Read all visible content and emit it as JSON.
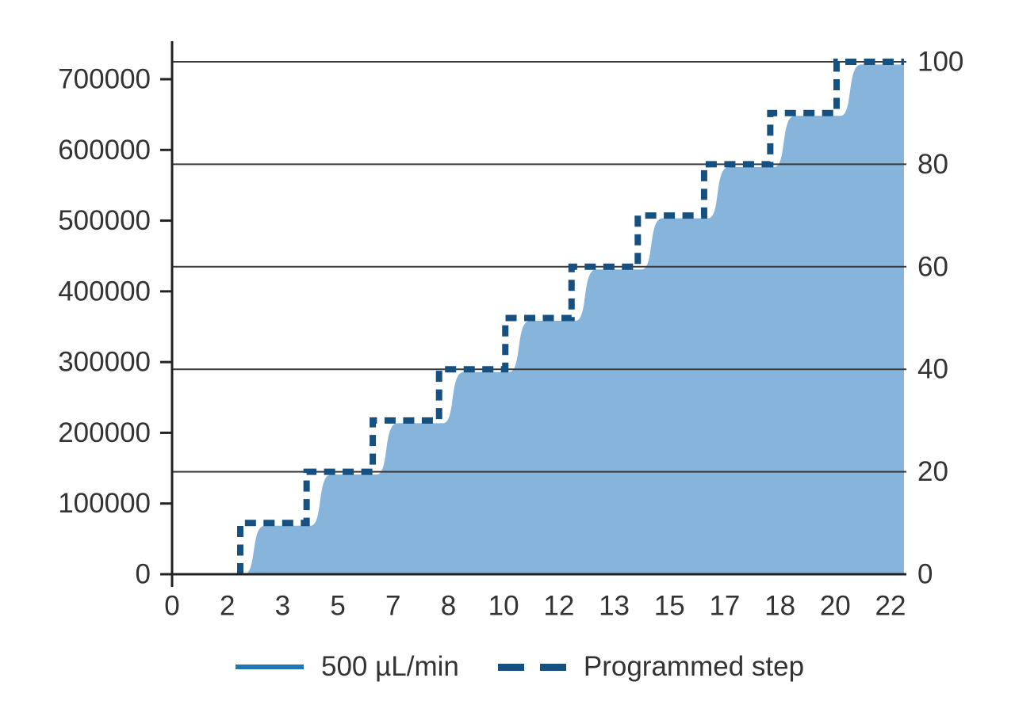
{
  "legend": {
    "items": [
      {
        "label": "500 µL/min",
        "swatch": "solid-line",
        "color": "#1C77B2"
      },
      {
        "label": "Programmed step",
        "swatch": "dashed-line",
        "color": "#155080"
      }
    ],
    "position": "bottom"
  },
  "chart_data": {
    "type": "area",
    "title": "",
    "x_axis": {
      "tick_labels": [
        "0",
        "2",
        "3",
        "5",
        "7",
        "8",
        "10",
        "12",
        "13",
        "15",
        "17",
        "18",
        "20",
        "22"
      ]
    },
    "y_axis_left": {
      "tick_labels": [
        "0",
        "100000",
        "200000",
        "300000",
        "400000",
        "500000",
        "600000",
        "700000"
      ]
    },
    "y_axis_right": {
      "tick_labels": [
        "0",
        "20",
        "40",
        "60",
        "80",
        "100"
      ],
      "tick_values": [
        0,
        20,
        40,
        60,
        80,
        100
      ],
      "gridline_values": [
        20,
        40,
        60,
        80,
        100
      ],
      "min": 0,
      "max": 100
    },
    "grid": "horizontal",
    "legend_position": "bottom",
    "series": [
      {
        "name": "500 µL/min",
        "type": "smooth_area",
        "fill_color": "#86B4DB",
        "line_color": "#1C77B2",
        "levels_pct": [
          0,
          10,
          20,
          30,
          40,
          50,
          60,
          70,
          80,
          90,
          100
        ],
        "rise_x_frac": [
          0.0932,
          0.1838,
          0.2742,
          0.3648,
          0.4553,
          0.5458,
          0.6363,
          0.7269,
          0.8173,
          0.9079
        ]
      },
      {
        "name": "Programmed step",
        "type": "step_line",
        "dashed": true,
        "color": "#155080",
        "levels_pct": [
          0,
          10,
          20,
          30,
          40,
          50,
          60,
          70,
          80,
          90,
          100
        ],
        "rise_x_frac": [
          0.0932,
          0.1838,
          0.2742,
          0.3648,
          0.4553,
          0.5458,
          0.6363,
          0.7269,
          0.8173,
          0.9079
        ]
      }
    ]
  },
  "colors": {
    "background": "#ffffff",
    "grid": "#3a3a3a",
    "axis": "#222222",
    "text": "#333333",
    "area_fill": "#86B4DB",
    "program_dash": "#155080",
    "legend_solid": "#1C77B2"
  }
}
